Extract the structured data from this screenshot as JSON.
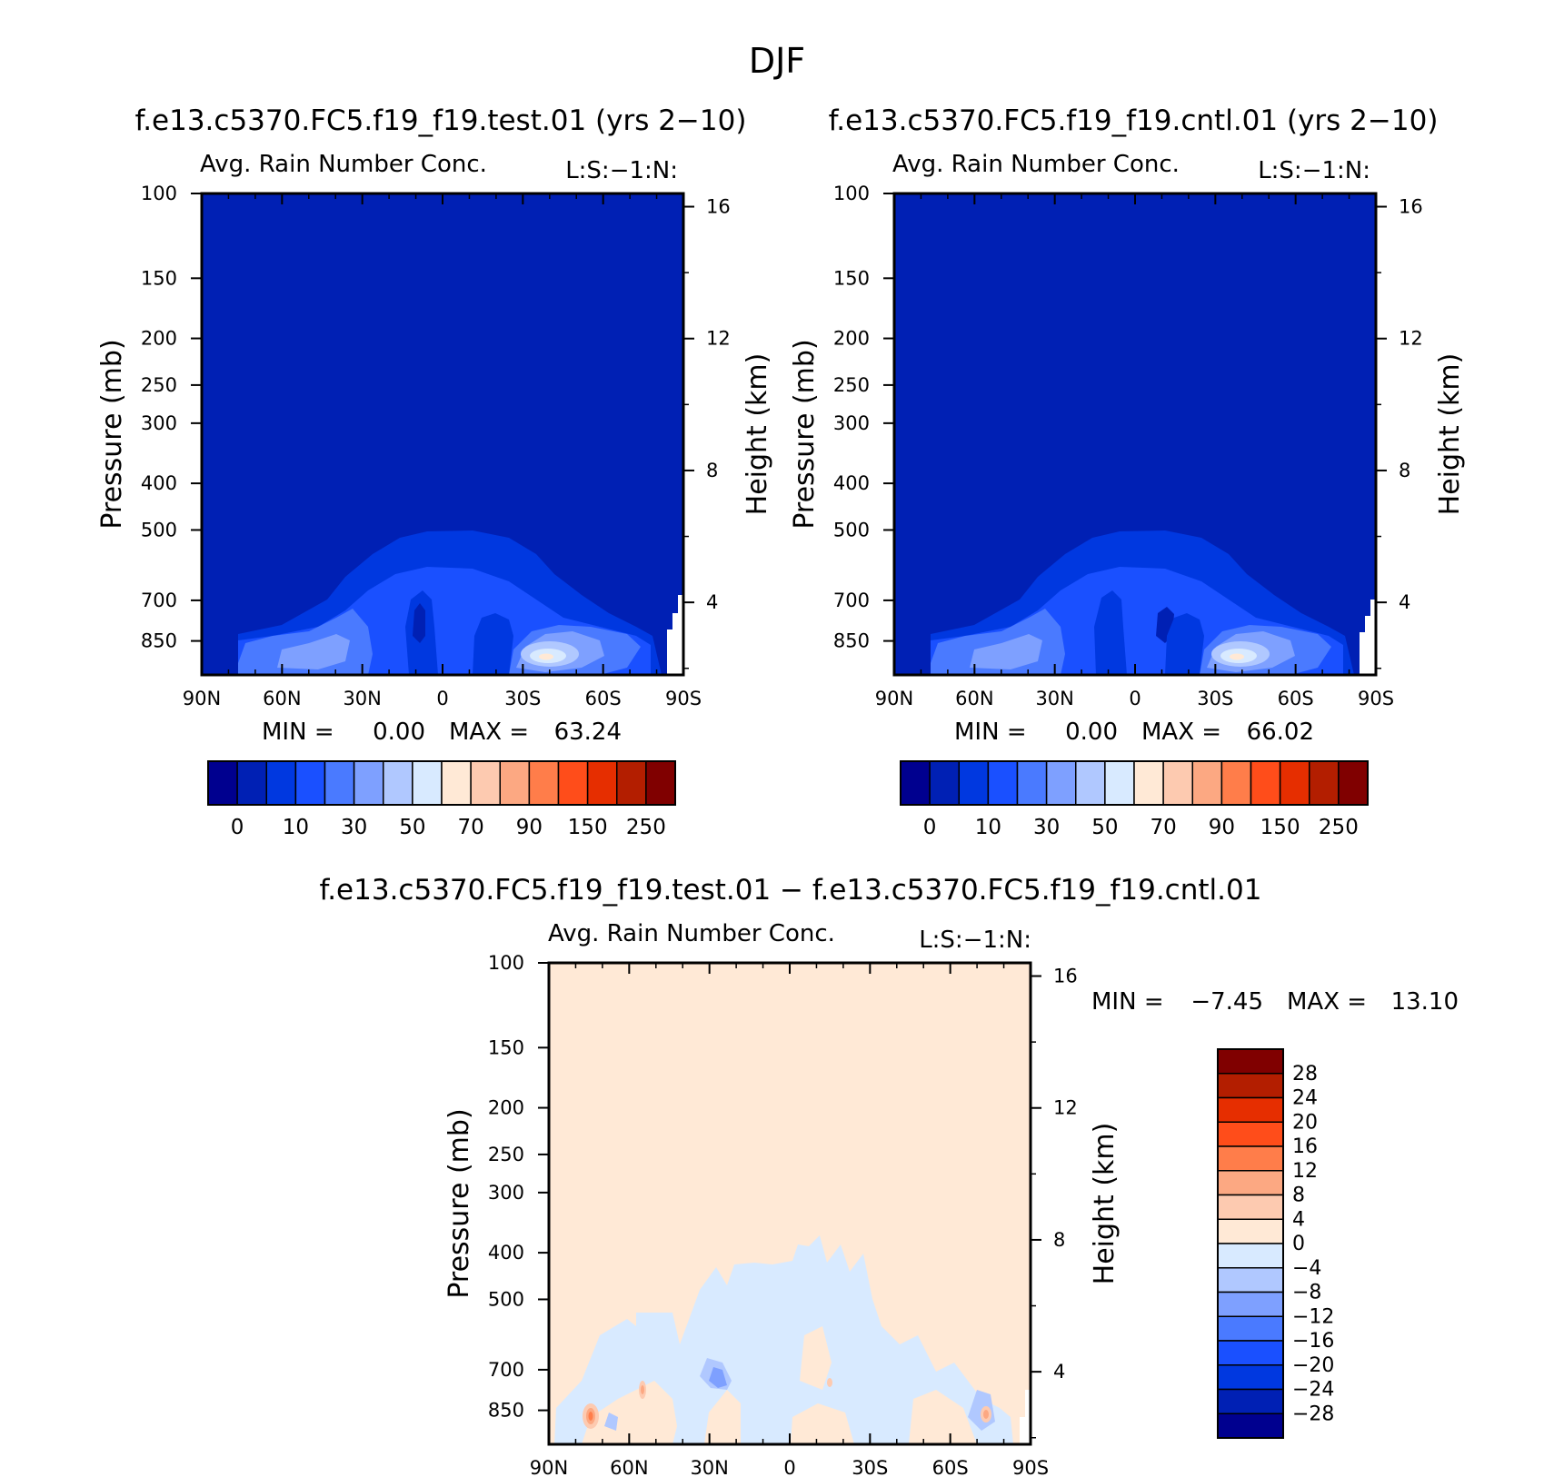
{
  "title": "DJF",
  "palette": {
    "blues": [
      "#00008f",
      "#0020b4",
      "#0038e0",
      "#1a50ff",
      "#4a7aff",
      "#7ea0ff",
      "#b0c8ff",
      "#d8eaff"
    ],
    "reds": [
      "#ffe9d6",
      "#fdcab0",
      "#fca882",
      "#ff7d4a",
      "#ff4d1a",
      "#e62e00",
      "#b31e00",
      "#800000"
    ]
  },
  "chart_data": [
    {
      "type": "heatmap",
      "panel": "test",
      "title": "f.e13.c5370.FC5.f19_f19.test.01 (yrs 2−10)",
      "subtitle": "Avg. Rain Number Conc.",
      "label_right": "L:S:−1:N:",
      "xlabel": "",
      "ylabel": "Pressure (mb)",
      "y2label": "Height (km)",
      "x_ticks": [
        "90N",
        "60N",
        "30N",
        "0",
        "30S",
        "60S",
        "90S"
      ],
      "y_ticks": [
        "100",
        "150",
        "200",
        "250",
        "300",
        "400",
        "500",
        "700",
        "850"
      ],
      "y2_ticks": [
        "16",
        "12",
        "8",
        "4"
      ],
      "ylim": [
        100,
        1000
      ],
      "min_label": "MIN =",
      "min_value": "0.00",
      "max_label": "MAX =",
      "max_value": "63.24",
      "colorbar_labels": [
        "0",
        "10",
        "30",
        "50",
        "70",
        "90",
        "150",
        "250"
      ],
      "colorbar_levels": [
        0,
        5,
        10,
        20,
        30,
        40,
        50,
        60,
        70,
        80,
        90,
        100,
        150,
        200,
        250
      ]
    },
    {
      "type": "heatmap",
      "panel": "control",
      "title": "f.e13.c5370.FC5.f19_f19.cntl.01 (yrs 2−10)",
      "subtitle": "Avg. Rain Number Conc.",
      "label_right": "L:S:−1:N:",
      "xlabel": "",
      "ylabel": "Pressure (mb)",
      "y2label": "Height (km)",
      "x_ticks": [
        "90N",
        "60N",
        "30N",
        "0",
        "30S",
        "60S",
        "90S"
      ],
      "y_ticks": [
        "100",
        "150",
        "200",
        "250",
        "300",
        "400",
        "500",
        "700",
        "850"
      ],
      "y2_ticks": [
        "16",
        "12",
        "8",
        "4"
      ],
      "ylim": [
        100,
        1000
      ],
      "min_label": "MIN =",
      "min_value": "0.00",
      "max_label": "MAX =",
      "max_value": "66.02",
      "colorbar_labels": [
        "0",
        "10",
        "30",
        "50",
        "70",
        "90",
        "150",
        "250"
      ],
      "colorbar_levels": [
        0,
        5,
        10,
        20,
        30,
        40,
        50,
        60,
        70,
        80,
        90,
        100,
        150,
        200,
        250
      ]
    },
    {
      "type": "heatmap",
      "panel": "difference",
      "title": "f.e13.c5370.FC5.f19_f19.test.01 − f.e13.c5370.FC5.f19_f19.cntl.01",
      "subtitle": "Avg. Rain Number Conc.",
      "label_right": "L:S:−1:N:",
      "xlabel": "",
      "ylabel": "Pressure (mb)",
      "y2label": "Height (km)",
      "x_ticks": [
        "90N",
        "60N",
        "30N",
        "0",
        "30S",
        "60S",
        "90S"
      ],
      "y_ticks": [
        "100",
        "150",
        "200",
        "250",
        "300",
        "400",
        "500",
        "700",
        "850"
      ],
      "y2_ticks": [
        "16",
        "12",
        "8",
        "4"
      ],
      "ylim": [
        100,
        1000
      ],
      "min_label": "MIN =",
      "min_value": "−7.45",
      "max_label": "MAX =",
      "max_value": "13.10",
      "colorbar_labels": [
        "28",
        "24",
        "20",
        "16",
        "12",
        "8",
        "4",
        "0",
        "−4",
        "−8",
        "−12",
        "−16",
        "−20",
        "−24",
        "−28"
      ],
      "colorbar_levels": [
        28,
        24,
        20,
        16,
        12,
        8,
        4,
        0,
        -4,
        -8,
        -12,
        -16,
        -20,
        -24,
        -28
      ]
    }
  ]
}
